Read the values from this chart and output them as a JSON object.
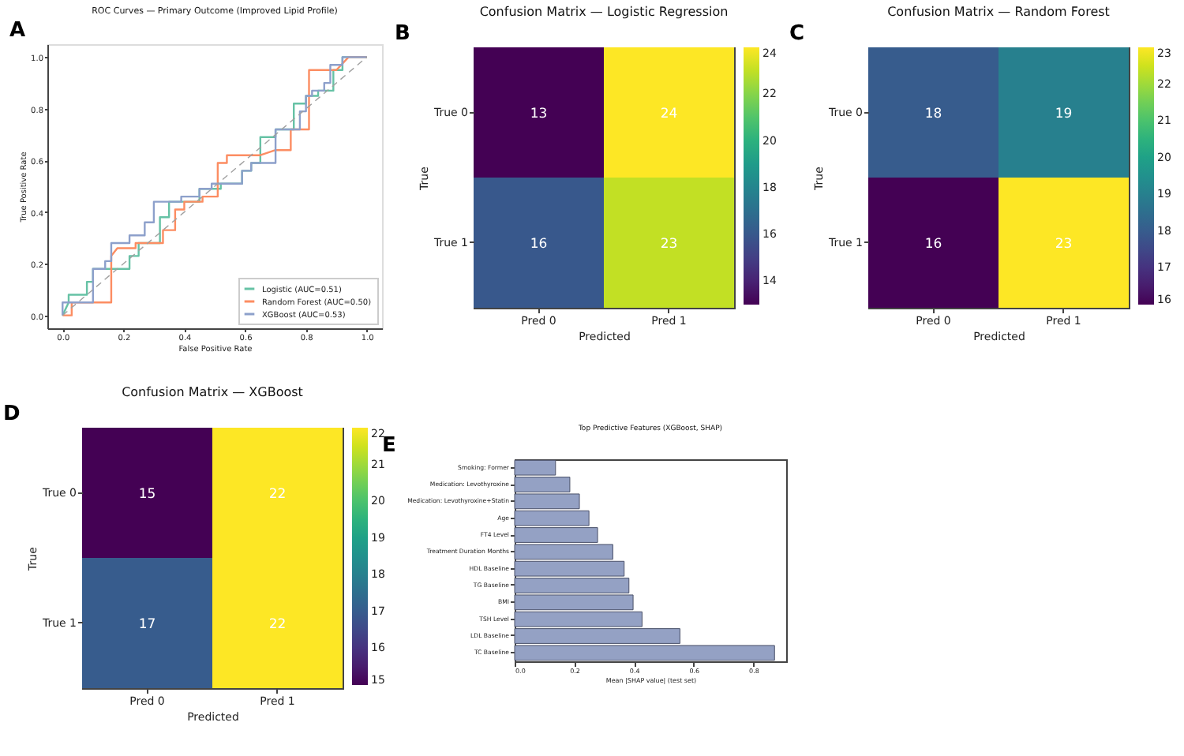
{
  "chart_data": [
    {
      "type": "line",
      "title": "ROC Curves — Primary Outcome (Improved Lipid Profile)",
      "xlabel": "False Positive Rate",
      "ylabel": "True Positive Rate",
      "annotations": [
        "A"
      ],
      "xlim": [
        -0.05,
        1.05
      ],
      "ylim": [
        -0.05,
        1.05
      ],
      "xticks": [
        {
          "value": 0,
          "label": "0.0"
        },
        {
          "value": 0.2,
          "label": "0.2"
        },
        {
          "value": 0.4,
          "label": "0.4"
        },
        {
          "value": 0.6,
          "label": "0.6"
        },
        {
          "value": 0.8,
          "label": "0.8"
        },
        {
          "value": 1,
          "label": "1.0"
        }
      ],
      "yticks": [
        {
          "value": 0,
          "label": "0.0"
        },
        {
          "value": 0.2,
          "label": "0.2"
        },
        {
          "value": 0.4,
          "label": "0.4"
        },
        {
          "value": 0.6,
          "label": "0.6"
        },
        {
          "value": 0.8,
          "label": "0.8"
        },
        {
          "value": 1,
          "label": "1.0"
        }
      ],
      "grid": false,
      "legend": "bottom right",
      "marker": "none",
      "series": [
        {
          "name": "Logistic (AUC=0.51)",
          "color": "#66c2a5",
          "x": [
            0,
            0.02,
            0.02,
            0.08,
            0.08,
            0.1,
            0.1,
            0.22,
            0.22,
            0.25,
            0.25,
            0.32,
            0.32,
            0.35,
            0.35,
            0.45,
            0.45,
            0.52,
            0.52,
            0.59,
            0.59,
            0.62,
            0.62,
            0.65,
            0.65,
            0.7,
            0.7,
            0.76,
            0.76,
            0.8,
            0.8,
            0.84,
            0.84,
            0.89,
            0.89,
            0.92,
            0.92,
            1
          ],
          "values": [
            0,
            0.05,
            0.08,
            0.08,
            0.13,
            0.13,
            0.18,
            0.18,
            0.23,
            0.23,
            0.28,
            0.28,
            0.38,
            0.38,
            0.44,
            0.44,
            0.49,
            0.49,
            0.51,
            0.51,
            0.56,
            0.56,
            0.59,
            0.59,
            0.69,
            0.69,
            0.72,
            0.72,
            0.82,
            0.82,
            0.85,
            0.85,
            0.87,
            0.87,
            0.95,
            0.95,
            1,
            1
          ]
        },
        {
          "name": "Random Forest (AUC=0.50)",
          "color": "#fc8d62",
          "x": [
            0,
            0.03,
            0.03,
            0.16,
            0.16,
            0.18,
            0.24,
            0.24,
            0.33,
            0.33,
            0.37,
            0.37,
            0.4,
            0.4,
            0.46,
            0.46,
            0.51,
            0.51,
            0.54,
            0.54,
            0.65,
            0.7,
            0.75,
            0.75,
            0.81,
            0.81,
            0.9,
            0.94,
            1
          ],
          "values": [
            0,
            0,
            0.05,
            0.05,
            0.23,
            0.26,
            0.26,
            0.28,
            0.28,
            0.33,
            0.33,
            0.41,
            0.41,
            0.44,
            0.44,
            0.46,
            0.46,
            0.59,
            0.59,
            0.62,
            0.62,
            0.64,
            0.64,
            0.72,
            0.72,
            0.95,
            0.95,
            1,
            1
          ]
        },
        {
          "name": "XGBoost (AUC=0.53)",
          "color": "#8da0cb",
          "x": [
            0,
            0,
            0.1,
            0.1,
            0.14,
            0.14,
            0.16,
            0.16,
            0.22,
            0.22,
            0.27,
            0.27,
            0.3,
            0.3,
            0.39,
            0.39,
            0.45,
            0.45,
            0.49,
            0.49,
            0.59,
            0.59,
            0.62,
            0.62,
            0.7,
            0.7,
            0.78,
            0.78,
            0.8,
            0.8,
            0.82,
            0.82,
            0.86,
            0.86,
            0.88,
            0.88,
            0.92,
            0.92,
            1
          ],
          "values": [
            0,
            0.05,
            0.05,
            0.18,
            0.18,
            0.21,
            0.21,
            0.28,
            0.28,
            0.31,
            0.31,
            0.36,
            0.36,
            0.44,
            0.44,
            0.46,
            0.46,
            0.49,
            0.49,
            0.51,
            0.51,
            0.56,
            0.56,
            0.59,
            0.59,
            0.72,
            0.72,
            0.79,
            0.79,
            0.85,
            0.85,
            0.87,
            0.87,
            0.9,
            0.9,
            0.97,
            0.97,
            1,
            1
          ]
        },
        {
          "color": "#a0a0a0",
          "line_style": "dashed",
          "x": [
            0,
            1
          ],
          "values": [
            0,
            1
          ]
        }
      ]
    },
    {
      "type": "heatmap",
      "title": "Confusion Matrix — Logistic Regression",
      "xlabel": "Predicted",
      "ylabel": "True",
      "annotations": [
        "B"
      ],
      "categories": [
        "Pred 0",
        "Pred 1"
      ],
      "y_categories": [
        "True 0",
        "True 1"
      ],
      "cells": [
        [
          13,
          24
        ],
        [
          16,
          23
        ]
      ],
      "data_labels": true,
      "clim": [
        13,
        24
      ],
      "cticks": [
        14,
        16,
        18,
        20,
        22,
        24
      ]
    },
    {
      "type": "heatmap",
      "title": "Confusion Matrix — Random Forest",
      "xlabel": "Predicted",
      "ylabel": "True",
      "annotations": [
        "C"
      ],
      "categories": [
        "Pred 0",
        "Pred 1"
      ],
      "y_categories": [
        "True 0",
        "True 1"
      ],
      "cells": [
        [
          18,
          19
        ],
        [
          16,
          23
        ]
      ],
      "data_labels": true,
      "clim": [
        16,
        23
      ],
      "cticks": [
        16,
        17,
        18,
        19,
        20,
        21,
        22,
        23
      ]
    },
    {
      "type": "heatmap",
      "title": "Confusion Matrix — XGBoost",
      "xlabel": "Predicted",
      "ylabel": "True",
      "annotations": [
        "D"
      ],
      "categories": [
        "Pred 0",
        "Pred 1"
      ],
      "y_categories": [
        "True 0",
        "True 1"
      ],
      "cells": [
        [
          15,
          22
        ],
        [
          17,
          22
        ]
      ],
      "data_labels": true,
      "clim": [
        15,
        22
      ],
      "cticks": [
        15,
        16,
        17,
        18,
        19,
        20,
        21,
        22
      ]
    },
    {
      "type": "bar",
      "orientation": "horizontal",
      "title": "Top Predictive Features (XGBoost, SHAP)",
      "xlabel": "Mean |SHAP value| (test set)",
      "annotations": [
        "E"
      ],
      "grid": false,
      "categories": [
        "Smoking: Former",
        "Medication: Levothyroxine",
        "Medication: Levothyroxine+Statin",
        "Age",
        "FT4 Level",
        "Treatment Duration Months",
        "HDL Baseline",
        "TG Baseline",
        "BMI",
        "TSH Level",
        "LDL Baseline",
        "TC Baseline"
      ],
      "values": [
        0.137,
        0.185,
        0.217,
        0.249,
        0.278,
        0.329,
        0.367,
        0.383,
        0.397,
        0.427,
        0.554,
        0.871
      ],
      "color": "#94a1c4",
      "xlim": [
        0,
        0.91
      ],
      "xticks": [
        {
          "value": 0,
          "label": "0.0"
        },
        {
          "value": 0.2,
          "label": "0.2"
        },
        {
          "value": 0.4,
          "label": "0.4"
        },
        {
          "value": 0.6,
          "label": "0.6"
        },
        {
          "value": 0.8,
          "label": "0.8"
        }
      ]
    }
  ]
}
